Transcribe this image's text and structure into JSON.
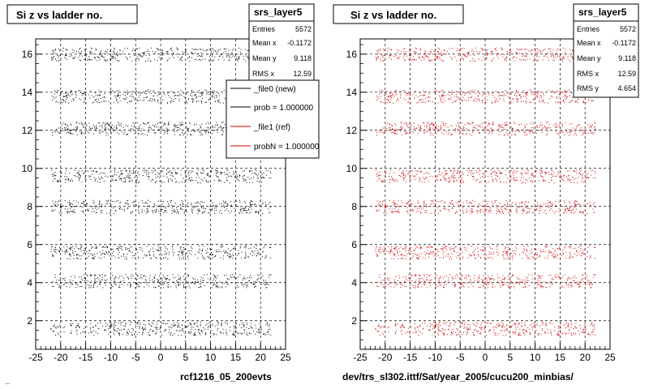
{
  "footer": {
    "left_caption": "rcf1216_05_200evts",
    "right_caption": "dev/trs_sl302.ittf/Sat/year_2005/cucu200_minbias/",
    "corner_text": "..."
  },
  "chart_data": [
    {
      "type": "scatter",
      "title": "Si z vs ladder no.",
      "xlabel": "",
      "ylabel": "",
      "xlim": [
        -25,
        25
      ],
      "ylim": [
        0.5,
        16.8
      ],
      "xticks": [
        "-25",
        "-20",
        "-15",
        "-10",
        "-5",
        "0",
        "5",
        "10",
        "15",
        "20",
        "25"
      ],
      "yticks": [
        "2",
        "4",
        "6",
        "8",
        "10",
        "12",
        "14",
        "16"
      ],
      "grid": true,
      "marker_color": "#000000",
      "bands_y": [
        1.6,
        4.1,
        5.6,
        8.0,
        9.6,
        12.1,
        13.8,
        16.0
      ],
      "band_halfwidth": 0.35,
      "x_range": [
        -22,
        22
      ],
      "stats": {
        "name": "srs_layer5",
        "rows": [
          {
            "label": "Entries",
            "value": "5572"
          },
          {
            "label": "Mean x",
            "value": "-0.1172"
          },
          {
            "label": "Mean y",
            "value": "9.118"
          },
          {
            "label": "RMS x",
            "value": "12.59"
          }
        ]
      },
      "legend": {
        "placement": "right",
        "entries": [
          {
            "text": "_file0 (new)",
            "color": "#000000"
          },
          {
            "text": "prob = 1.000000",
            "color": "#000000"
          },
          {
            "text": "_file1 (ref)",
            "color": "#cc0000"
          },
          {
            "text": "probN = 1.000000",
            "color": "#cc0000"
          }
        ]
      }
    },
    {
      "type": "scatter",
      "title": "Si z vs ladder no.",
      "xlabel": "",
      "ylabel": "",
      "xlim": [
        -25,
        25
      ],
      "ylim": [
        0.5,
        16.8
      ],
      "xticks": [
        "-25",
        "-20",
        "-15",
        "-10",
        "-5",
        "0",
        "5",
        "10",
        "15",
        "20",
        "25"
      ],
      "yticks": [
        "2",
        "4",
        "6",
        "8",
        "10",
        "12",
        "14",
        "16"
      ],
      "grid": true,
      "marker_color": "#cc0000",
      "bands_y": [
        1.6,
        4.1,
        5.6,
        8.0,
        9.6,
        12.1,
        13.8,
        16.0
      ],
      "band_halfwidth": 0.35,
      "x_range": [
        -22,
        22
      ],
      "stats": {
        "name": "srs_layer5",
        "rows": [
          {
            "label": "Entries",
            "value": "5572"
          },
          {
            "label": "Mean x",
            "value": "-0.1172"
          },
          {
            "label": "Mean y",
            "value": "9.118"
          },
          {
            "label": "RMS x",
            "value": "12.59"
          },
          {
            "label": "RMS y",
            "value": "4.654"
          }
        ]
      }
    }
  ]
}
